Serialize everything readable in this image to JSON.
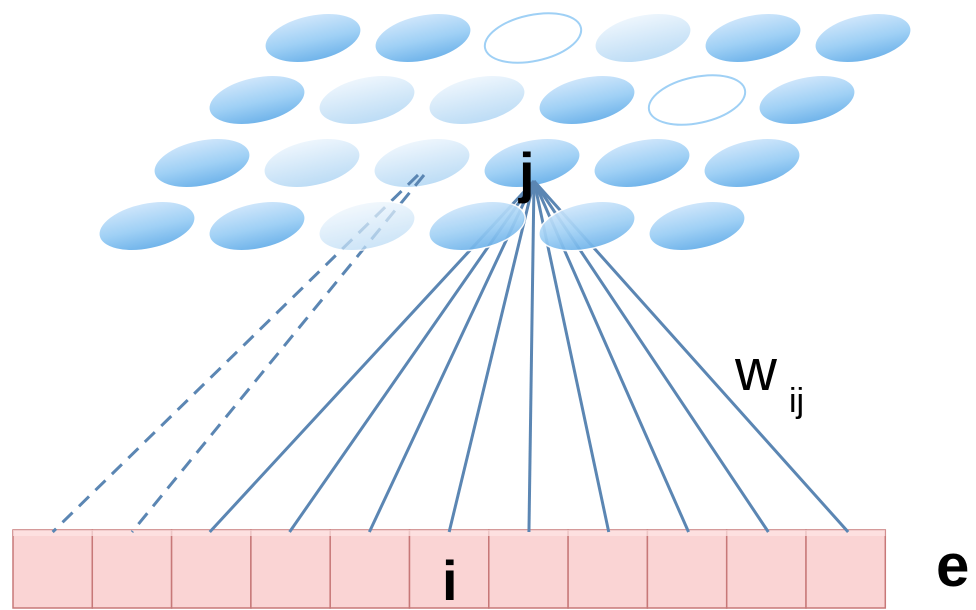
{
  "labels": {
    "output_node": "j",
    "input_node": "i",
    "weight": "w",
    "weight_subscript": "ij",
    "input_vector": "e"
  },
  "grid": {
    "rows": 4,
    "cols": 6,
    "highlight_row": 2,
    "highlight_col": 3,
    "faded_cells": [
      [
        0,
        2
      ],
      [
        1,
        4
      ]
    ],
    "light_cells": [
      [
        0,
        3
      ],
      [
        1,
        1
      ],
      [
        1,
        2
      ],
      [
        2,
        1
      ],
      [
        2,
        2
      ],
      [
        3,
        2
      ]
    ],
    "colors": {
      "node_light": "#cfe6fb",
      "node_mid": "#9fd0f5",
      "node_dark": "#6fb3ea",
      "node_stroke": "#ffffff"
    }
  },
  "input_layer": {
    "cells": 11,
    "fill": "#fad4d4",
    "stroke": "#c77878",
    "label_cell": 5
  },
  "connections": {
    "color": "#5b86b3",
    "solid_to_cells": [
      2,
      3,
      4,
      5,
      6,
      7,
      8,
      9,
      10
    ],
    "dashed_to_cells": [
      0,
      1
    ]
  }
}
